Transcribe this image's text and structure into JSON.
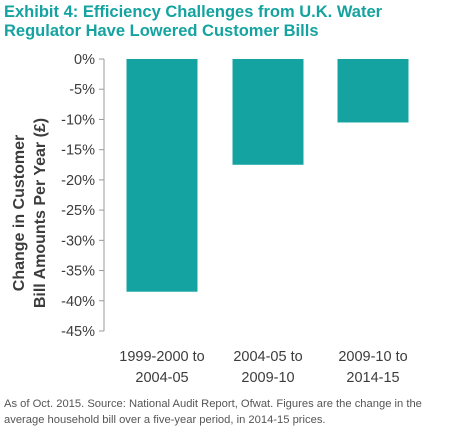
{
  "chart_data": {
    "type": "bar",
    "title": "Exhibit 4: Efficiency Challenges from U.K. Water Regulator Have Lowered Customer Bills",
    "ylabel": "Change in Customer Bill Amounts Per Year (£)",
    "ylabel_lines": [
      "Change in Customer",
      "Bill Amounts Per Year (£)"
    ],
    "xlabel": "",
    "categories": [
      [
        "1999-2000 to",
        "2004-05"
      ],
      [
        "2004-05 to",
        "2009-10"
      ],
      [
        "2009-10 to",
        "2014-15"
      ]
    ],
    "values": [
      -38.5,
      -17.5,
      -10.5
    ],
    "ylim": [
      -45,
      0
    ],
    "yticks": [
      0,
      -5,
      -10,
      -15,
      -20,
      -25,
      -30,
      -35,
      -40,
      -45
    ],
    "ytick_labels": [
      "0%",
      "-5%",
      "-10%",
      "-15%",
      "-20%",
      "-25%",
      "-30%",
      "-35%",
      "-40%",
      "-45%"
    ],
    "grid": false,
    "colors": {
      "bar": "#14a3a0",
      "title": "#14a3a0",
      "axis": "#999999",
      "text": "#3c3c3c"
    }
  },
  "footnote": "As of Oct. 2015. Source: National Audit Report, Ofwat. Figures are the change in the average household bill over a five-year period, in 2014-15 prices."
}
